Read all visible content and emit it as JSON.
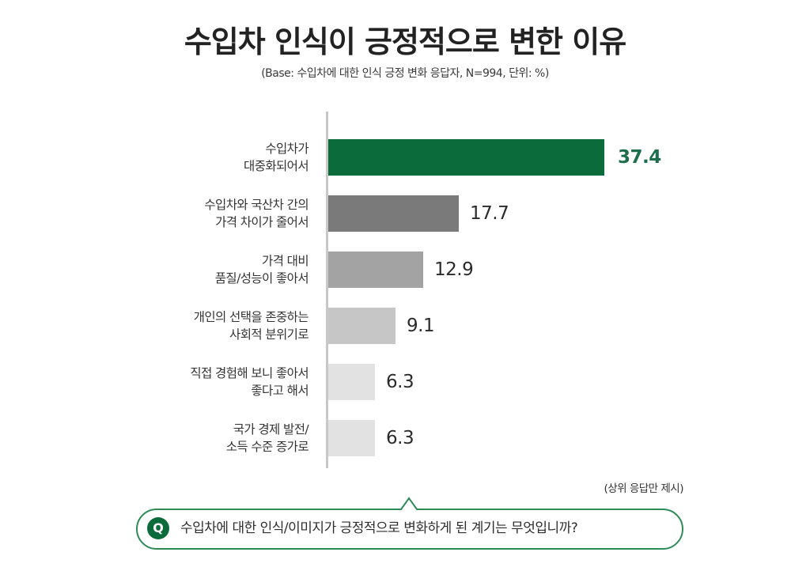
{
  "header": {
    "title": "수입차 인식이 긍정적으로 변한 이유",
    "subtitle": "(Base: 수입차에 대한 인식 긍정 변화 응답자, N=994, 단위: %)"
  },
  "footer": {
    "note": "(상위 응답만 제시)",
    "question_badge": "Q",
    "question_text": "수입차에 대한 인식/이미지가 긍정적으로 변화하게 된 계기는 무엇입니까?"
  },
  "colors": {
    "highlight": "#0b6b3a",
    "highlight_text": "#1e6e4e",
    "bars": [
      "#0b6b3a",
      "#7a7a7a",
      "#a3a3a3",
      "#c6c6c6",
      "#e2e2e2",
      "#e2e2e2"
    ]
  },
  "chart_data": {
    "type": "bar",
    "orientation": "horizontal",
    "title": "수입차 인식이 긍정적으로 변한 이유",
    "subtitle": "(Base: 수입차에 대한 인식 긍정 변화 응답자, N=994, 단위: %)",
    "xlabel": "",
    "ylabel": "",
    "unit": "%",
    "categories": [
      "수입차가 대중화되어서",
      "수입차와 국산차 간의 가격 차이가 줄어서",
      "가격 대비 품질/성능이 좋아서",
      "개인의 선택을 존중하는 사회적 분위기로",
      "직접 경험해 보니 좋아서 좋다고 해서",
      "국가 경제 발전/소득 수준 증가로"
    ],
    "values": [
      37.4,
      17.7,
      12.9,
      9.1,
      6.3,
      6.3
    ],
    "grid": false,
    "legend": null,
    "annotations": [
      "(상위 응답만 제시)"
    ]
  },
  "rows": [
    {
      "line1": "수입차가",
      "line2": "대중화되어서",
      "value": "37.4"
    },
    {
      "line1": "수입차와 국산차 간의",
      "line2": "가격 차이가 줄어서",
      "value": "17.7"
    },
    {
      "line1": "가격 대비",
      "line2": "품질/성능이 좋아서",
      "value": "12.9"
    },
    {
      "line1": "개인의 선택을 존중하는",
      "line2": "사회적 분위기로",
      "value": "9.1"
    },
    {
      "line1": "직접 경험해 보니 좋아서",
      "line2": "좋다고 해서",
      "value": "6.3"
    },
    {
      "line1": "국가 경제 발전/",
      "line2": "소득 수준 증가로",
      "value": "6.3"
    }
  ]
}
